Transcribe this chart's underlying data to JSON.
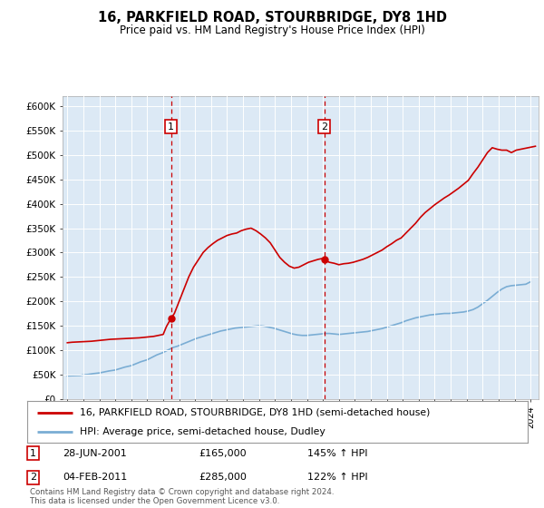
{
  "title": "16, PARKFIELD ROAD, STOURBRIDGE, DY8 1HD",
  "subtitle": "Price paid vs. HM Land Registry's House Price Index (HPI)",
  "ylim": [
    0,
    620000
  ],
  "yticks": [
    0,
    50000,
    100000,
    150000,
    200000,
    250000,
    300000,
    350000,
    400000,
    450000,
    500000,
    550000,
    600000
  ],
  "ytick_labels": [
    "£0",
    "£50K",
    "£100K",
    "£150K",
    "£200K",
    "£250K",
    "£300K",
    "£350K",
    "£400K",
    "£450K",
    "£500K",
    "£550K",
    "£600K"
  ],
  "xlim_start": 1994.7,
  "xlim_end": 2024.5,
  "background_color": "#dce9f5",
  "grid_color": "#ffffff",
  "sale1_year": 2001.49,
  "sale1_price": 165000,
  "sale1_label": "1",
  "sale1_date": "28-JUN-2001",
  "sale1_amount": "£165,000",
  "sale1_hpi": "145% ↑ HPI",
  "sale2_year": 2011.09,
  "sale2_price": 285000,
  "sale2_label": "2",
  "sale2_date": "04-FEB-2011",
  "sale2_amount": "£285,000",
  "sale2_hpi": "122% ↑ HPI",
  "red_line_color": "#cc0000",
  "blue_line_color": "#7aadd4",
  "legend_line1": "16, PARKFIELD ROAD, STOURBRIDGE, DY8 1HD (semi-detached house)",
  "legend_line2": "HPI: Average price, semi-detached house, Dudley",
  "footer_text": "Contains HM Land Registry data © Crown copyright and database right 2024.\nThis data is licensed under the Open Government Licence v3.0.",
  "hpi_x": [
    1995.0,
    1995.2,
    1995.5,
    1995.8,
    1996.0,
    1996.3,
    1996.6,
    1997.0,
    1997.3,
    1997.6,
    1998.0,
    1998.3,
    1998.6,
    1999.0,
    1999.3,
    1999.6,
    2000.0,
    2000.3,
    2000.6,
    2001.0,
    2001.3,
    2001.6,
    2001.9,
    2002.2,
    2002.5,
    2002.8,
    2003.1,
    2003.4,
    2003.7,
    2004.0,
    2004.3,
    2004.6,
    2004.9,
    2005.2,
    2005.5,
    2005.8,
    2006.1,
    2006.4,
    2006.7,
    2007.0,
    2007.3,
    2007.6,
    2007.9,
    2008.2,
    2008.5,
    2008.8,
    2009.1,
    2009.4,
    2009.7,
    2010.0,
    2010.3,
    2010.6,
    2010.9,
    2011.1,
    2011.4,
    2011.7,
    2012.0,
    2012.3,
    2012.6,
    2012.9,
    2013.2,
    2013.5,
    2013.8,
    2014.1,
    2014.4,
    2014.7,
    2015.0,
    2015.3,
    2015.6,
    2015.9,
    2016.2,
    2016.5,
    2016.8,
    2017.1,
    2017.4,
    2017.7,
    2018.0,
    2018.3,
    2018.6,
    2018.9,
    2019.2,
    2019.5,
    2019.8,
    2020.1,
    2020.4,
    2020.7,
    2021.0,
    2021.3,
    2021.6,
    2021.9,
    2022.2,
    2022.5,
    2022.8,
    2023.1,
    2023.4,
    2023.7,
    2024.0
  ],
  "hpi_y": [
    47000,
    47200,
    47500,
    47800,
    49000,
    50000,
    51500,
    53000,
    55000,
    57000,
    59000,
    62000,
    65000,
    68000,
    72000,
    76000,
    80000,
    85000,
    90000,
    95000,
    100000,
    105000,
    108000,
    112000,
    116000,
    120000,
    124000,
    127000,
    130000,
    133000,
    136000,
    139000,
    141000,
    143000,
    145000,
    146000,
    147000,
    148000,
    149000,
    150000,
    149000,
    147000,
    145000,
    142000,
    139000,
    136000,
    133000,
    131000,
    130000,
    130000,
    131000,
    132000,
    133000,
    134000,
    134000,
    133000,
    132000,
    133000,
    134000,
    135000,
    136000,
    137000,
    138000,
    140000,
    142000,
    144000,
    147000,
    150000,
    153000,
    156000,
    160000,
    163000,
    166000,
    168000,
    170000,
    172000,
    173000,
    174000,
    175000,
    175000,
    176000,
    177000,
    178000,
    180000,
    183000,
    188000,
    195000,
    202000,
    210000,
    218000,
    225000,
    230000,
    232000,
    233000,
    234000,
    235000,
    240000
  ],
  "price_x": [
    1995.0,
    1995.3,
    1995.6,
    1995.9,
    1996.2,
    1996.5,
    1996.8,
    1997.1,
    1997.4,
    1997.7,
    1998.0,
    1998.3,
    1998.6,
    1998.9,
    1999.2,
    1999.5,
    1999.8,
    2000.1,
    2000.4,
    2000.7,
    2001.0,
    2001.2,
    2001.49,
    2001.7,
    2002.0,
    2002.3,
    2002.6,
    2002.9,
    2003.2,
    2003.5,
    2003.8,
    2004.1,
    2004.4,
    2004.7,
    2005.0,
    2005.3,
    2005.6,
    2005.9,
    2006.2,
    2006.5,
    2006.8,
    2007.1,
    2007.4,
    2007.7,
    2008.0,
    2008.3,
    2008.6,
    2008.9,
    2009.2,
    2009.5,
    2009.8,
    2010.1,
    2010.4,
    2010.7,
    2011.0,
    2011.09,
    2011.4,
    2011.7,
    2012.0,
    2012.3,
    2012.6,
    2012.9,
    2013.2,
    2013.5,
    2013.8,
    2014.1,
    2014.4,
    2014.7,
    2015.0,
    2015.3,
    2015.6,
    2015.9,
    2016.2,
    2016.5,
    2016.8,
    2017.1,
    2017.4,
    2017.7,
    2018.0,
    2018.3,
    2018.6,
    2018.9,
    2019.2,
    2019.5,
    2019.8,
    2020.1,
    2020.4,
    2020.7,
    2021.0,
    2021.3,
    2021.6,
    2021.9,
    2022.2,
    2022.5,
    2022.8,
    2023.1,
    2023.4,
    2023.7,
    2024.0,
    2024.3
  ],
  "price_y": [
    115000,
    116000,
    116500,
    117000,
    117500,
    118000,
    119000,
    120000,
    121000,
    122000,
    122500,
    123000,
    123500,
    124000,
    124500,
    125000,
    126000,
    127000,
    128000,
    130000,
    132000,
    148000,
    165000,
    175000,
    200000,
    225000,
    250000,
    270000,
    285000,
    300000,
    310000,
    318000,
    325000,
    330000,
    335000,
    338000,
    340000,
    345000,
    348000,
    350000,
    345000,
    338000,
    330000,
    320000,
    305000,
    290000,
    280000,
    272000,
    268000,
    270000,
    275000,
    280000,
    283000,
    286000,
    288000,
    285000,
    280000,
    278000,
    275000,
    277000,
    278000,
    280000,
    283000,
    286000,
    290000,
    295000,
    300000,
    305000,
    312000,
    318000,
    325000,
    330000,
    340000,
    350000,
    360000,
    372000,
    382000,
    390000,
    398000,
    405000,
    412000,
    418000,
    425000,
    432000,
    440000,
    448000,
    462000,
    475000,
    490000,
    505000,
    515000,
    512000,
    510000,
    510000,
    505000,
    510000,
    512000,
    514000,
    516000,
    518000
  ]
}
